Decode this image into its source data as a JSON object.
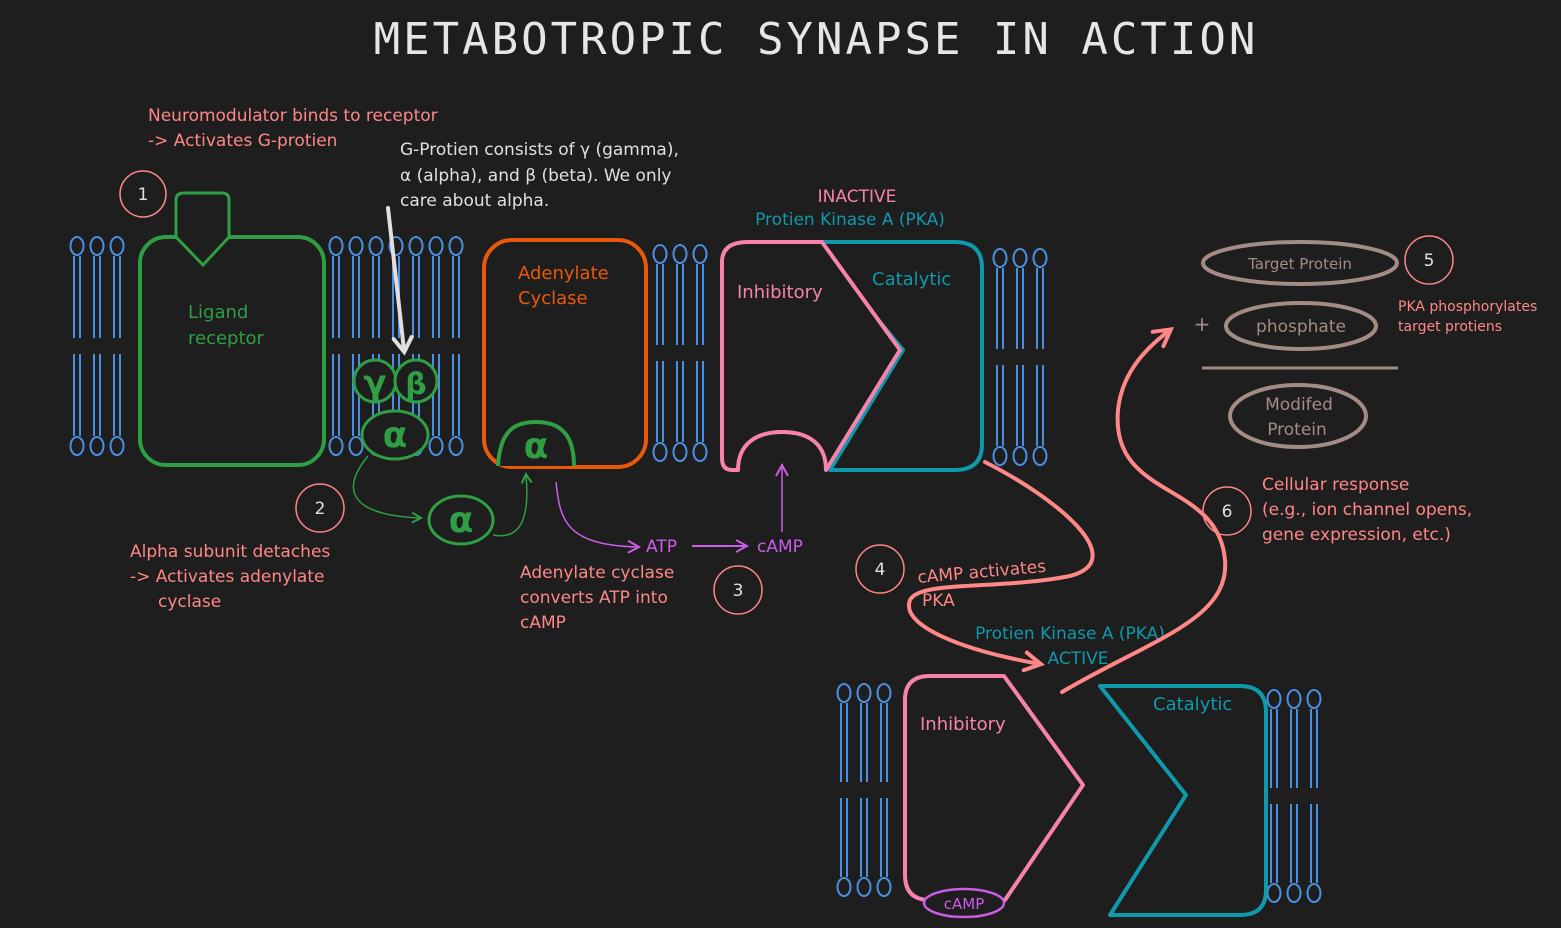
{
  "colors": {
    "background": "#1e1e1e",
    "title": "#e6e6e6",
    "membrane": "#4a90e2",
    "green": "#2f9e44",
    "orange": "#e8590c",
    "pink": "#f783ac",
    "teal": "#1098ad",
    "violet": "#cc5de8",
    "salmon": "#ff8787",
    "white": "#e0e0e0",
    "brown": "#a38c86"
  },
  "title": "METABOTROPIC SYNAPSE IN ACTION",
  "step1": {
    "number": "1",
    "line1": "Neuromodulator binds to receptor",
    "line2": "-> Activates G-protien"
  },
  "ligand_receptor": {
    "line1": "Ligand",
    "line2": "receptor"
  },
  "gprotein_note": {
    "line1": "G-Protien consists of γ (gamma),",
    "line2": "α (alpha), and β (beta). We only",
    "line3": "care about alpha."
  },
  "subunits": {
    "gamma": "γ",
    "beta": "β",
    "alpha": "α"
  },
  "adenylate_cyclase": {
    "line1": "Adenylate",
    "line2": "Cyclase"
  },
  "step2": {
    "number": "2",
    "line1": "Alpha subunit detaches",
    "line2": "-> Activates adenylate",
    "line3": "cyclase"
  },
  "step3": {
    "number": "3",
    "line1": "Adenylate cyclase",
    "line2": "converts ATP into",
    "line3": "cAMP"
  },
  "atp": "ATP",
  "camp": "cAMP",
  "pka_inactive": {
    "state": "INACTIVE",
    "name": "Protien Kinase A (PKA)",
    "inhibitory": "Inhibitory",
    "catalytic": "Catalytic"
  },
  "step4": {
    "number": "4",
    "line1": "cAMP activates",
    "line2": "PKA"
  },
  "pka_active": {
    "name": "Protien Kinase A (PKA)",
    "state": "ACTIVE",
    "inhibitory": "Inhibitory",
    "catalytic": "Catalytic",
    "camp": "cAMP"
  },
  "step5": {
    "number": "5",
    "target_protein": "Target Protein",
    "plus": "+",
    "phosphate": "phosphate",
    "modified_line1": "Modifed",
    "modified_line2": "Protein",
    "note_line1": "PKA phosphorylates",
    "note_line2": "target protiens"
  },
  "step6": {
    "number": "6",
    "line1": "Cellular response",
    "line2": "(e.g., ion channel opens,",
    "line3": "gene expression, etc.)"
  }
}
